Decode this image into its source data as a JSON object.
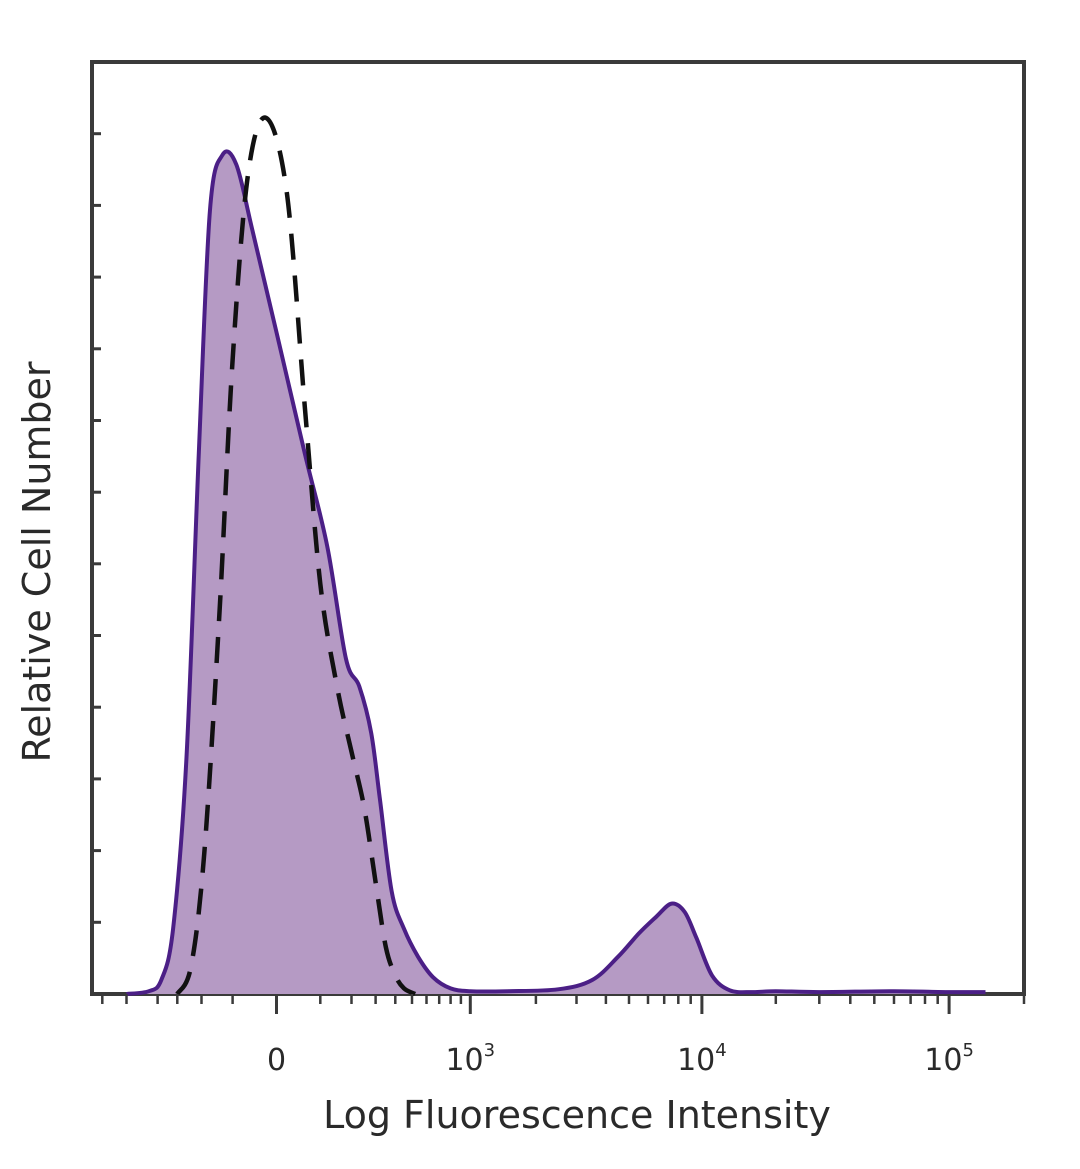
{
  "chart_data": {
    "type": "area",
    "xlabel": "Log Fluorescence Intensity",
    "ylabel": "Relative Cell Number",
    "xscale": "biexponential",
    "x_tick_labels": [
      {
        "base": "0",
        "exp": ""
      },
      {
        "base": "10",
        "exp": "3"
      },
      {
        "base": "10",
        "exp": "4"
      },
      {
        "base": "10",
        "exp": "5"
      }
    ],
    "ylim": [
      0,
      100
    ],
    "grid": false,
    "legend": "none",
    "series": [
      {
        "style": "filled",
        "fill_color": "#b59ac4",
        "line_color": "#4b1f86",
        "x": [
          -600,
          -450,
          -380,
          -320,
          -260,
          -210,
          -170,
          -130,
          -90,
          -50,
          0,
          60,
          120,
          180,
          230,
          280,
          320,
          380,
          450,
          540,
          650,
          800,
          1000,
          1500,
          2500,
          3500,
          4500,
          5500,
          6500,
          7500,
          8500,
          9500,
          11000,
          13000,
          16000,
          20000,
          30000,
          60000,
          100000,
          140000
        ],
        "y": [
          0,
          0.3,
          1.5,
          7,
          25,
          58,
          84,
          90,
          89,
          82,
          71,
          58,
          48,
          36,
          33,
          28,
          21,
          11,
          7,
          4,
          1.8,
          0.6,
          0.3,
          0.3,
          0.5,
          1.5,
          4,
          6.5,
          8.3,
          9.7,
          8.8,
          6,
          2,
          0.4,
          0.2,
          0.3,
          0.2,
          0.3,
          0.2,
          0.2
        ]
      },
      {
        "style": "dashed",
        "line_color": "#111111",
        "x": [
          -300,
          -240,
          -190,
          -140,
          -100,
          -60,
          -20,
          20,
          60,
          100,
          150,
          200,
          250,
          300,
          350,
          400,
          450,
          520
        ],
        "y": [
          0,
          3,
          15,
          40,
          68,
          88,
          94,
          86,
          63,
          44,
          33,
          26,
          20,
          12,
          5,
          2,
          0.6,
          0
        ]
      }
    ]
  }
}
